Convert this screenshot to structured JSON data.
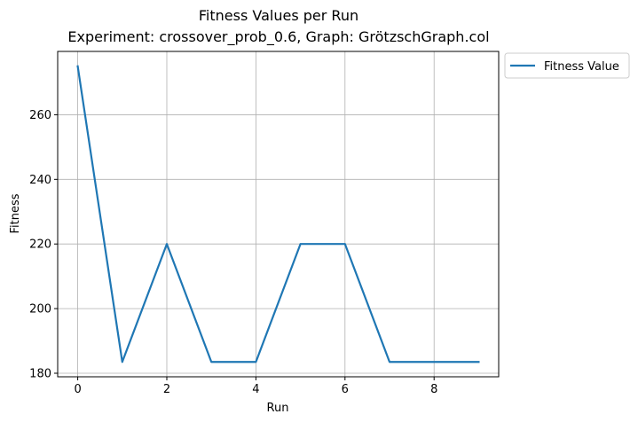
{
  "chart_data": {
    "type": "line",
    "title": "Fitness Values per Run",
    "subtitle": "Experiment: crossover_prob_0.6, Graph: GrötzschGraph.col",
    "xlabel": "Run",
    "ylabel": "Fitness",
    "x": [
      0,
      1,
      2,
      3,
      4,
      5,
      6,
      7,
      8,
      9
    ],
    "series": [
      {
        "name": "Fitness Value",
        "values": [
          275,
          183.5,
          220,
          183.5,
          183.5,
          220,
          220,
          183.5,
          183.5,
          183.5
        ],
        "color": "#1f77b4"
      }
    ],
    "xlim": [
      -0.45,
      9.45
    ],
    "ylim": [
      178.9,
      279.6
    ],
    "xticks": [
      0,
      2,
      4,
      6,
      8
    ],
    "xtick_labels": [
      "0",
      "2",
      "4",
      "6",
      "8"
    ],
    "yticks": [
      180,
      200,
      220,
      240,
      260
    ],
    "ytick_labels": [
      "180",
      "200",
      "220",
      "240",
      "260"
    ],
    "grid": true,
    "legend": "outside-upper-right"
  }
}
